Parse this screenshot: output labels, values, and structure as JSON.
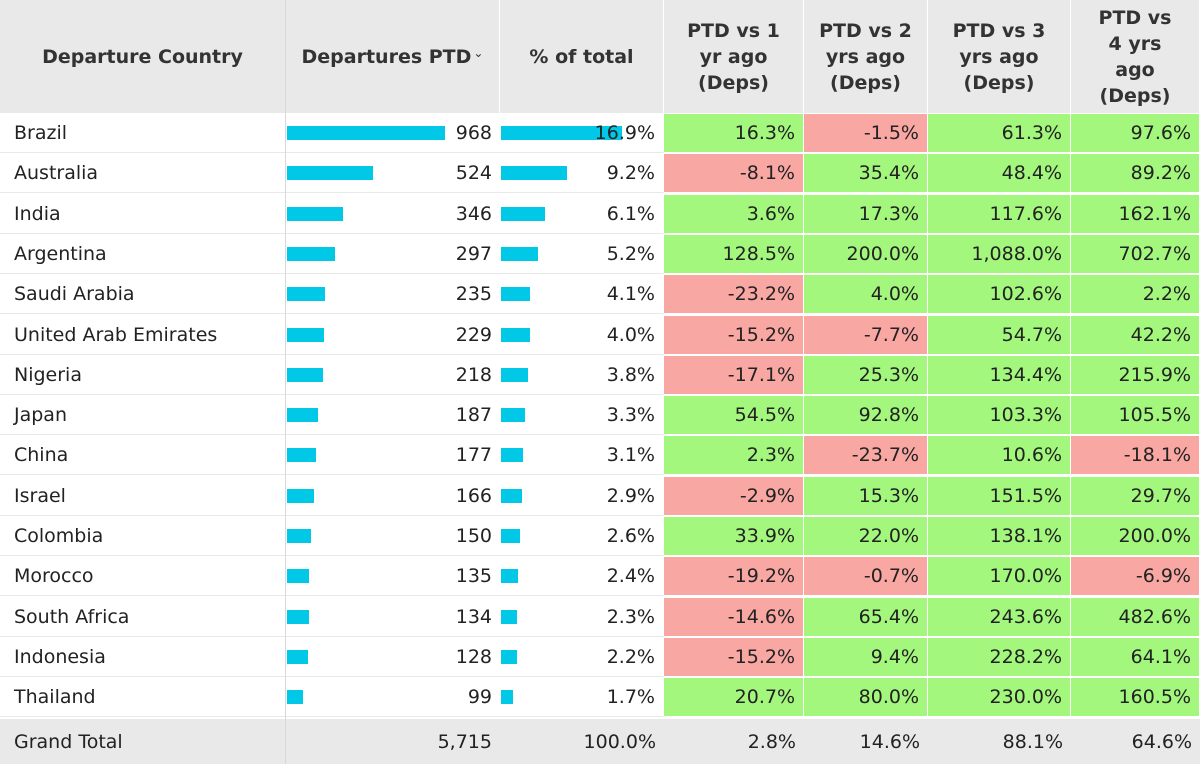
{
  "table": {
    "headers": {
      "country": "Departure Country",
      "departures": "Departures PTD",
      "share": "% of total",
      "vs1": "PTD vs 1 yr ago (Deps)",
      "vs2": "PTD vs 2 yrs ago (Deps)",
      "vs3": "PTD vs 3 yrs ago (Deps)",
      "vs4": "PTD vs 4 yrs ago (Deps)"
    },
    "colors": {
      "positive": "#a3f77d",
      "negative": "#f8a7a3",
      "bar": "#00c8e6",
      "header_bg": "#e9e9e9"
    },
    "sort_icon": "sort-descending-icon",
    "rows": [
      {
        "country": "Brazil",
        "departures": "968",
        "dep_value": 968,
        "share": "16.9%",
        "share_value": 16.9,
        "vs1": "16.3%",
        "vs2": "-1.5%",
        "vs3": "61.3%",
        "vs4": "97.6%"
      },
      {
        "country": "Australia",
        "departures": "524",
        "dep_value": 524,
        "share": "9.2%",
        "share_value": 9.2,
        "vs1": "-8.1%",
        "vs2": "35.4%",
        "vs3": "48.4%",
        "vs4": "89.2%"
      },
      {
        "country": "India",
        "departures": "346",
        "dep_value": 346,
        "share": "6.1%",
        "share_value": 6.1,
        "vs1": "3.6%",
        "vs2": "17.3%",
        "vs3": "117.6%",
        "vs4": "162.1%"
      },
      {
        "country": "Argentina",
        "departures": "297",
        "dep_value": 297,
        "share": "5.2%",
        "share_value": 5.2,
        "vs1": "128.5%",
        "vs2": "200.0%",
        "vs3": "1,088.0%",
        "vs4": "702.7%"
      },
      {
        "country": "Saudi Arabia",
        "departures": "235",
        "dep_value": 235,
        "share": "4.1%",
        "share_value": 4.1,
        "vs1": "-23.2%",
        "vs2": "4.0%",
        "vs3": "102.6%",
        "vs4": "2.2%"
      },
      {
        "country": "United Arab Emirates",
        "departures": "229",
        "dep_value": 229,
        "share": "4.0%",
        "share_value": 4.0,
        "vs1": "-15.2%",
        "vs2": "-7.7%",
        "vs3": "54.7%",
        "vs4": "42.2%"
      },
      {
        "country": "Nigeria",
        "departures": "218",
        "dep_value": 218,
        "share": "3.8%",
        "share_value": 3.8,
        "vs1": "-17.1%",
        "vs2": "25.3%",
        "vs3": "134.4%",
        "vs4": "215.9%"
      },
      {
        "country": "Japan",
        "departures": "187",
        "dep_value": 187,
        "share": "3.3%",
        "share_value": 3.3,
        "vs1": "54.5%",
        "vs2": "92.8%",
        "vs3": "103.3%",
        "vs4": "105.5%"
      },
      {
        "country": "China",
        "departures": "177",
        "dep_value": 177,
        "share": "3.1%",
        "share_value": 3.1,
        "vs1": "2.3%",
        "vs2": "-23.7%",
        "vs3": "10.6%",
        "vs4": "-18.1%"
      },
      {
        "country": "Israel",
        "departures": "166",
        "dep_value": 166,
        "share": "2.9%",
        "share_value": 2.9,
        "vs1": "-2.9%",
        "vs2": "15.3%",
        "vs3": "151.5%",
        "vs4": "29.7%"
      },
      {
        "country": "Colombia",
        "departures": "150",
        "dep_value": 150,
        "share": "2.6%",
        "share_value": 2.6,
        "vs1": "33.9%",
        "vs2": "22.0%",
        "vs3": "138.1%",
        "vs4": "200.0%"
      },
      {
        "country": "Morocco",
        "departures": "135",
        "dep_value": 135,
        "share": "2.4%",
        "share_value": 2.4,
        "vs1": "-19.2%",
        "vs2": "-0.7%",
        "vs3": "170.0%",
        "vs4": "-6.9%"
      },
      {
        "country": "South Africa",
        "departures": "134",
        "dep_value": 134,
        "share": "2.3%",
        "share_value": 2.3,
        "vs1": "-14.6%",
        "vs2": "65.4%",
        "vs3": "243.6%",
        "vs4": "482.6%"
      },
      {
        "country": "Indonesia",
        "departures": "128",
        "dep_value": 128,
        "share": "2.2%",
        "share_value": 2.2,
        "vs1": "-15.2%",
        "vs2": "9.4%",
        "vs3": "228.2%",
        "vs4": "64.1%"
      },
      {
        "country": "Thailand",
        "departures": "99",
        "dep_value": 99,
        "share": "1.7%",
        "share_value": 1.7,
        "vs1": "20.7%",
        "vs2": "80.0%",
        "vs3": "230.0%",
        "vs4": "160.5%"
      }
    ],
    "total": {
      "country": "Grand Total",
      "departures": "5,715",
      "share": "100.0%",
      "vs1": "2.8%",
      "vs2": "14.6%",
      "vs3": "88.1%",
      "vs4": "64.6%"
    }
  }
}
